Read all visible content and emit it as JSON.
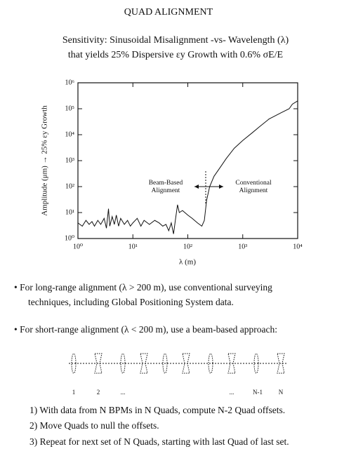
{
  "title": "QUAD ALIGNMENT",
  "subtitle": [
    "Sensitivity: Sinusoidal Misalignment -vs- Wavelength (λ)",
    "that yields 25% Dispersive εy Growth with 0.6% σE/E"
  ],
  "chart_data": {
    "type": "line",
    "x_label": "λ (m)",
    "y_label": "Amplitude (μm) → 25% εy Growth",
    "xscale": "log",
    "yscale": "log",
    "color": "#111111",
    "xlim": [
      1,
      10000
    ],
    "ylim": [
      1,
      1000000
    ],
    "xticks": [
      {
        "value": 1,
        "label": "10⁰"
      },
      {
        "value": 10,
        "label": "10¹"
      },
      {
        "value": 100,
        "label": "10²"
      },
      {
        "value": 1000,
        "label": "10³"
      },
      {
        "value": 10000,
        "label": "10⁴"
      }
    ],
    "yticks": [
      {
        "value": 1,
        "label": "10⁰"
      },
      {
        "value": 10,
        "label": "10¹"
      },
      {
        "value": 100,
        "label": "10²"
      },
      {
        "value": 1000,
        "label": "10³"
      },
      {
        "value": 10000,
        "label": "10⁴"
      },
      {
        "value": 100000,
        "label": "10⁵"
      },
      {
        "value": 1000000,
        "label": "10⁶"
      }
    ],
    "x": [
      1,
      1.2,
      1.4,
      1.6,
      1.8,
      2,
      2.3,
      2.6,
      3,
      3.3,
      3.6,
      3.8,
      4.2,
      4.6,
      5,
      5.5,
      6,
      7,
      8,
      9,
      10,
      12,
      14,
      16,
      20,
      25,
      30,
      35,
      40,
      45,
      50,
      55,
      60,
      65,
      70,
      80,
      100,
      120,
      150,
      180,
      200,
      220,
      250,
      300,
      400,
      500,
      700,
      1000,
      1500,
      2000,
      3000,
      5000,
      7000,
      8000,
      10000
    ],
    "values": [
      4,
      3,
      5,
      3.5,
      4.5,
      3,
      5,
      3.5,
      6,
      2.5,
      14,
      3,
      7,
      3.5,
      8,
      3,
      6,
      3.5,
      5,
      3,
      4,
      6,
      3,
      5,
      3.5,
      5,
      4,
      3,
      3.5,
      2,
      4,
      1.5,
      6,
      20,
      10,
      12,
      8,
      6,
      4,
      3,
      5,
      30,
      100,
      250,
      600,
      1200,
      3000,
      6000,
      12000,
      20000,
      40000,
      70000,
      100000,
      150000,
      200000
    ],
    "annotations": [
      {
        "lines": [
          "Beam-Based",
          "Alignment"
        ]
      },
      {
        "lines": [
          "Conventional",
          "Alignment"
        ]
      }
    ]
  },
  "bullets": [
    [
      "• For long-range alignment (λ > 200 m), use conventional surveying",
      "techniques, including Global Positioning System data."
    ],
    [
      "• For short-range alignment (λ < 200 m), use a beam-based approach:"
    ]
  ],
  "diagram": {
    "labels": [
      "1",
      "2",
      "...",
      "...",
      "N-1",
      "N"
    ]
  },
  "steps": [
    "1)  With data from N BPMs in N Quads, compute N-2 Quad offsets.",
    "2)  Move Quads to null the offsets.",
    "3)  Repeat for next set of N Quads, starting with last Quad of last set."
  ]
}
